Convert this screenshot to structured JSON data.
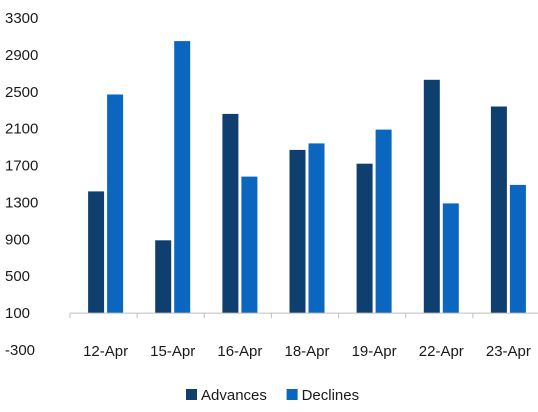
{
  "chart_data": {
    "type": "bar",
    "title": "",
    "xlabel": "",
    "ylabel": "",
    "categories": [
      "12-Apr",
      "15-Apr",
      "16-Apr",
      "18-Apr",
      "19-Apr",
      "22-Apr",
      "23-Apr"
    ],
    "series": [
      {
        "name": "Advances",
        "color": "#0E3F6E",
        "values": [
          1420,
          890,
          2260,
          1870,
          1720,
          2630,
          2340
        ]
      },
      {
        "name": "Declines",
        "color": "#0A66BF",
        "values": [
          2470,
          3050,
          1580,
          1940,
          2090,
          1290,
          1490
        ]
      }
    ],
    "y_ticks": [
      "3300",
      "2900",
      "2500",
      "2100",
      "1700",
      "1300",
      "900",
      "500",
      "100",
      "-300"
    ],
    "ylim": [
      -300,
      3300
    ],
    "baseline_value": 100,
    "grid": false,
    "legend_position": "bottom-center"
  }
}
